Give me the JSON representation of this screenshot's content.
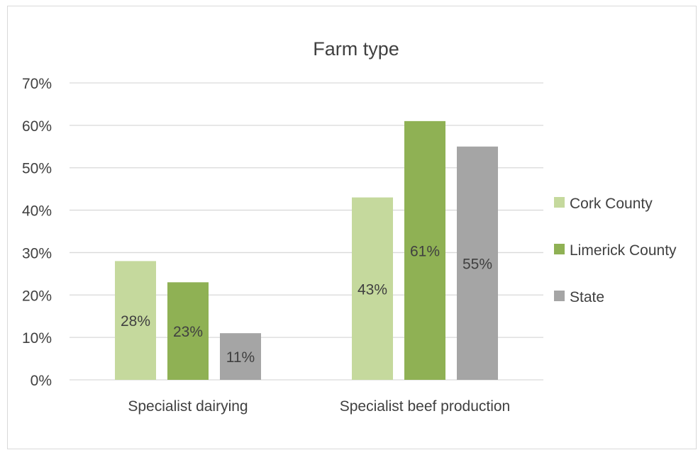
{
  "chart_data": {
    "type": "bar",
    "title": "Farm type",
    "categories": [
      "Specialist dairying",
      "Specialist beef production"
    ],
    "series": [
      {
        "name": "Cork County",
        "color": "#c5d99d",
        "values": [
          28,
          43
        ],
        "labels": [
          "28%",
          "43%"
        ]
      },
      {
        "name": "Limerick County",
        "color": "#8fb154",
        "values": [
          23,
          61
        ],
        "labels": [
          "23%",
          "61%"
        ]
      },
      {
        "name": "State",
        "color": "#a5a5a5",
        "values": [
          11,
          55
        ],
        "labels": [
          "11%",
          "55%"
        ]
      }
    ],
    "y_ticks": [
      "0%",
      "10%",
      "20%",
      "30%",
      "40%",
      "50%",
      "60%",
      "70%"
    ],
    "ylim": [
      0,
      70
    ],
    "grid": true,
    "legend_position": "right",
    "colors": {
      "gridline": "#d9d9d9",
      "text": "#404040",
      "label_text": "#404040"
    }
  }
}
